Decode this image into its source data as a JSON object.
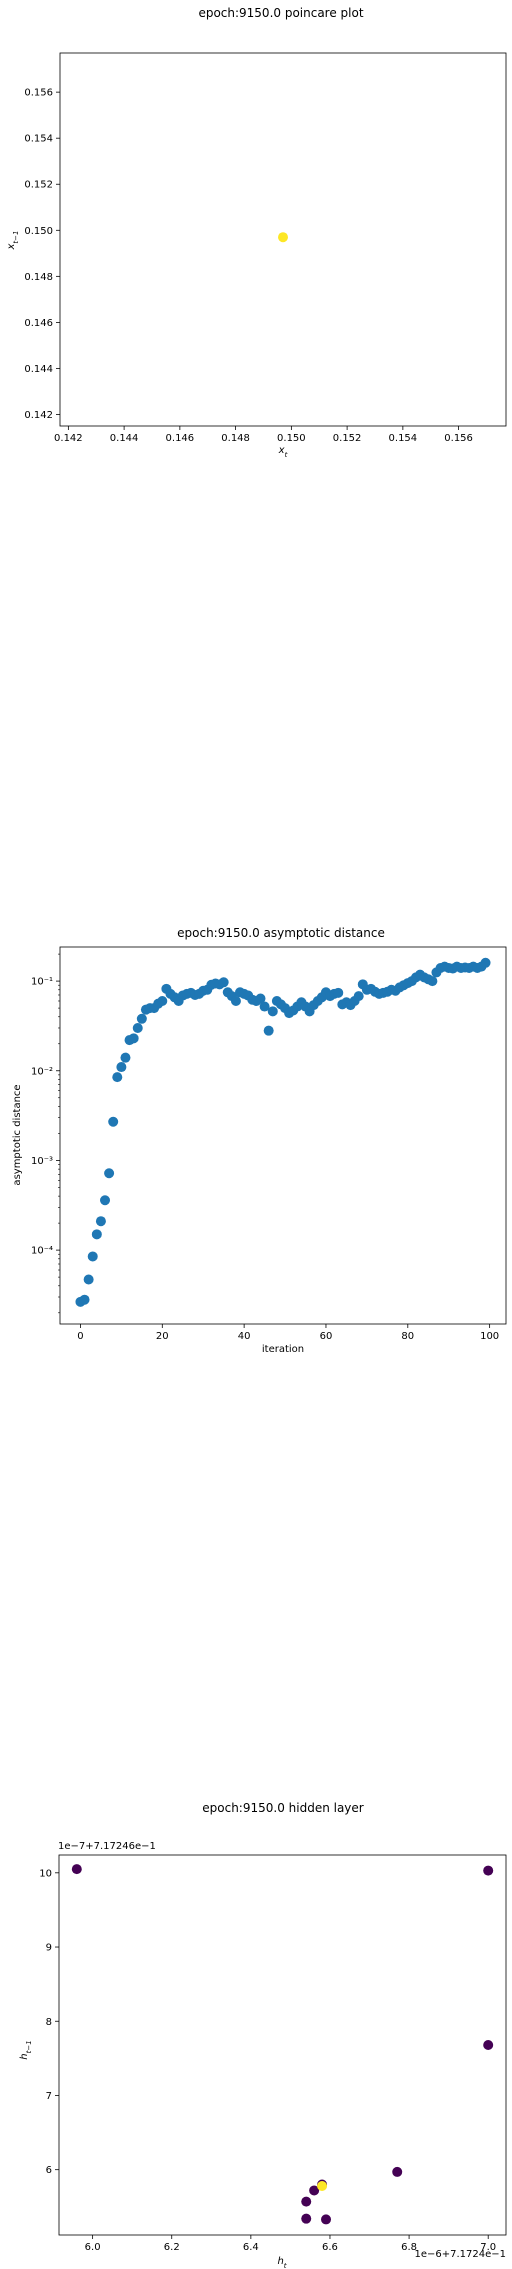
{
  "chart_data": [
    {
      "type": "scatter",
      "title": "epoch:9150.0 poincare plot",
      "xlabel": "x_t",
      "ylabel": "x_{t-1}",
      "xlim": [
        0.1417,
        0.1577
      ],
      "ylim": [
        0.1415,
        0.1577
      ],
      "xticks": [
        0.142,
        0.144,
        0.146,
        0.148,
        0.15,
        0.152,
        0.154,
        0.156
      ],
      "xtick_labels": [
        "0.142",
        "0.144",
        "0.146",
        "0.148",
        "0.150",
        "0.152",
        "0.154",
        "0.156"
      ],
      "yticks": [
        0.142,
        0.144,
        0.146,
        0.148,
        0.15,
        0.152,
        0.154,
        0.156
      ],
      "ytick_labels": [
        "0.142",
        "0.144",
        "0.146",
        "0.148",
        "0.150",
        "0.152",
        "0.154",
        "0.156"
      ],
      "points": [
        [
          0.1497,
          0.1497
        ]
      ],
      "point_color": "#fde725",
      "grid": false
    },
    {
      "type": "scatter",
      "title": "epoch:9150.0 asymptotic distance",
      "xlabel": "iteration",
      "ylabel": "asymptotic distance",
      "yscale": "log",
      "xlim": [
        -5,
        104
      ],
      "ylim": [
        1.5e-05,
        0.24
      ],
      "xticks": [
        0,
        20,
        40,
        60,
        80,
        100
      ],
      "xtick_labels": [
        "0",
        "20",
        "40",
        "60",
        "80",
        "100"
      ],
      "yticks": [
        0.0001,
        0.001,
        0.01,
        0.1
      ],
      "ytick_labels": [
        "10⁻⁴",
        "10⁻³",
        "10⁻²",
        "10⁻¹"
      ],
      "x": [
        0,
        1,
        2,
        3,
        4,
        5,
        6,
        7,
        8,
        9,
        10,
        11,
        12,
        13,
        14,
        15,
        16,
        17,
        18,
        19,
        20,
        21,
        22,
        23,
        24,
        25,
        26,
        27,
        28,
        29,
        30,
        31,
        32,
        33,
        34,
        35,
        36,
        37,
        38,
        39,
        40,
        41,
        42,
        43,
        44,
        45,
        46,
        47,
        48,
        49,
        50,
        51,
        52,
        53,
        54,
        55,
        56,
        57,
        58,
        59,
        60,
        61,
        62,
        63,
        64,
        65,
        66,
        67,
        68,
        69,
        70,
        71,
        72,
        73,
        74,
        75,
        76,
        77,
        78,
        79,
        80,
        81,
        82,
        83,
        84,
        85,
        86,
        87,
        88,
        89,
        90,
        91,
        92,
        93,
        94,
        95,
        96,
        97,
        98,
        99
      ],
      "y": [
        2.65e-05,
        2.8e-05,
        4.7e-05,
        8.5e-05,
        0.00015,
        0.00021,
        0.00036,
        0.00072,
        0.0027,
        0.0085,
        0.011,
        0.014,
        0.022,
        0.023,
        0.03,
        0.038,
        0.048,
        0.05,
        0.05,
        0.056,
        0.06,
        0.082,
        0.072,
        0.066,
        0.06,
        0.069,
        0.072,
        0.074,
        0.07,
        0.072,
        0.078,
        0.08,
        0.091,
        0.094,
        0.092,
        0.097,
        0.075,
        0.068,
        0.06,
        0.075,
        0.072,
        0.069,
        0.062,
        0.06,
        0.064,
        0.052,
        0.028,
        0.046,
        0.06,
        0.055,
        0.05,
        0.044,
        0.047,
        0.052,
        0.058,
        0.052,
        0.046,
        0.054,
        0.06,
        0.066,
        0.075,
        0.068,
        0.072,
        0.074,
        0.055,
        0.058,
        0.054,
        0.06,
        0.068,
        0.092,
        0.08,
        0.082,
        0.076,
        0.072,
        0.074,
        0.076,
        0.08,
        0.078,
        0.085,
        0.09,
        0.095,
        0.1,
        0.11,
        0.118,
        0.11,
        0.105,
        0.1,
        0.125,
        0.14,
        0.145,
        0.14,
        0.138,
        0.145,
        0.14,
        0.142,
        0.14,
        0.145,
        0.14,
        0.145,
        0.16
      ],
      "point_color": "#1f77b4",
      "grid": false
    },
    {
      "type": "scatter",
      "title": "epoch:9150.0 hidden layer",
      "xlabel": "h_t",
      "ylabel": "h_{t-1}",
      "xlim": [
        5.915,
        7.045
      ],
      "ylim": [
        5.12,
        10.24
      ],
      "x_offset_label": "1e−6+7.1724e−1",
      "y_offset_label": "1e−7+7.17246e−1",
      "xticks": [
        6.0,
        6.2,
        6.4,
        6.6,
        6.8,
        7.0
      ],
      "xtick_labels": [
        "6.0",
        "6.2",
        "6.4",
        "6.6",
        "6.8",
        "7.0"
      ],
      "yticks": [
        6,
        7,
        8,
        9,
        10
      ],
      "ytick_labels": [
        "6",
        "7",
        "8",
        "9",
        "10"
      ],
      "points": [
        {
          "x": 5.96,
          "y": 10.05,
          "color": "#440154"
        },
        {
          "x": 7.0,
          "y": 10.03,
          "color": "#440154"
        },
        {
          "x": 7.0,
          "y": 7.68,
          "color": "#440154"
        },
        {
          "x": 6.77,
          "y": 5.97,
          "color": "#440154"
        },
        {
          "x": 6.58,
          "y": 5.8,
          "color": "#440154"
        },
        {
          "x": 6.56,
          "y": 5.72,
          "color": "#440154"
        },
        {
          "x": 6.54,
          "y": 5.57,
          "color": "#440154"
        },
        {
          "x": 6.54,
          "y": 5.34,
          "color": "#440154"
        },
        {
          "x": 6.59,
          "y": 5.33,
          "color": "#440154"
        },
        {
          "x": 6.58,
          "y": 5.78,
          "color": "#fde725"
        }
      ],
      "grid": false
    }
  ]
}
